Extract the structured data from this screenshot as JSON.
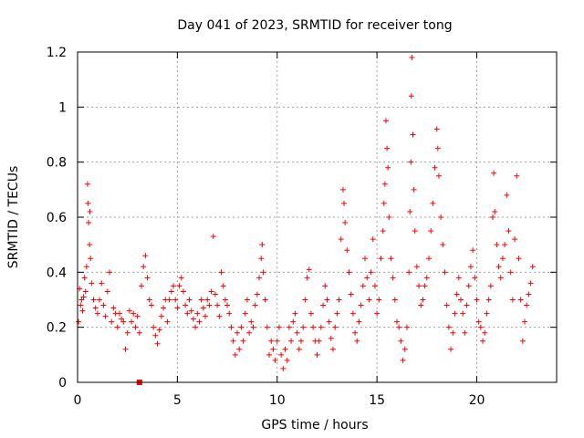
{
  "chart_data": {
    "type": "scatter",
    "title": "Day 041 of 2023, SRMTID for receiver tong",
    "xlabel": "GPS time / hours",
    "ylabel": "SRMTID / TECUs",
    "xlim": [
      0,
      24
    ],
    "ylim": [
      0,
      1.2
    ],
    "x_ticks": [
      0,
      5,
      10,
      15,
      20
    ],
    "x_tick_labels": [
      "0",
      "5",
      "10",
      "15",
      "20"
    ],
    "y_ticks": [
      0,
      0.2,
      0.4,
      0.6,
      0.8,
      1,
      1.2
    ],
    "y_tick_labels": [
      "0",
      "0.2",
      "0.4",
      "0.6",
      "0.8",
      "1",
      "1.2"
    ],
    "grid": true,
    "marker": "+",
    "colors": {
      "series": "#ff0000",
      "grid": "#a0a0a0",
      "axis": "#000000"
    },
    "series": [
      {
        "name": "SRMTID",
        "points": [
          [
            0.05,
            0.22
          ],
          [
            0.1,
            0.34
          ],
          [
            0.15,
            0.28
          ],
          [
            0.2,
            0.3
          ],
          [
            0.25,
            0.26
          ],
          [
            0.3,
            0.31
          ],
          [
            0.35,
            0.38
          ],
          [
            0.4,
            0.33
          ],
          [
            0.45,
            0.42
          ],
          [
            0.5,
            0.72
          ],
          [
            0.52,
            0.65
          ],
          [
            0.55,
            0.58
          ],
          [
            0.6,
            0.5
          ],
          [
            0.62,
            0.62
          ],
          [
            0.65,
            0.45
          ],
          [
            0.7,
            0.36
          ],
          [
            0.8,
            0.3
          ],
          [
            0.9,
            0.27
          ],
          [
            1.0,
            0.25
          ],
          [
            1.1,
            0.3
          ],
          [
            1.2,
            0.36
          ],
          [
            1.3,
            0.28
          ],
          [
            1.4,
            0.24
          ],
          [
            1.5,
            0.33
          ],
          [
            1.6,
            0.4
          ],
          [
            1.7,
            0.22
          ],
          [
            1.8,
            0.27
          ],
          [
            1.9,
            0.25
          ],
          [
            2.0,
            0.2
          ],
          [
            2.1,
            0.25
          ],
          [
            2.2,
            0.23
          ],
          [
            2.3,
            0.22
          ],
          [
            2.4,
            0.12
          ],
          [
            2.5,
            0.18
          ],
          [
            2.6,
            0.26
          ],
          [
            2.7,
            0.22
          ],
          [
            2.8,
            0.25
          ],
          [
            2.9,
            0.2
          ],
          [
            3.0,
            0.24
          ],
          [
            3.1,
            0.18
          ],
          [
            3.2,
            0.35
          ],
          [
            3.3,
            0.42
          ],
          [
            3.4,
            0.46
          ],
          [
            3.5,
            0.38
          ],
          [
            3.6,
            0.3
          ],
          [
            3.7,
            0.28
          ],
          [
            3.8,
            0.2
          ],
          [
            3.9,
            0.17
          ],
          [
            4.0,
            0.14
          ],
          [
            4.1,
            0.19
          ],
          [
            4.2,
            0.24
          ],
          [
            4.3,
            0.27
          ],
          [
            4.4,
            0.3
          ],
          [
            4.5,
            0.22
          ],
          [
            4.6,
            0.3
          ],
          [
            4.7,
            0.33
          ],
          [
            4.8,
            0.35
          ],
          [
            4.9,
            0.3
          ],
          [
            5.0,
            0.27
          ],
          [
            5.1,
            0.35
          ],
          [
            5.2,
            0.38
          ],
          [
            5.3,
            0.33
          ],
          [
            5.4,
            0.28
          ],
          [
            5.5,
            0.25
          ],
          [
            5.6,
            0.3
          ],
          [
            5.7,
            0.26
          ],
          [
            5.8,
            0.23
          ],
          [
            5.9,
            0.2
          ],
          [
            6.0,
            0.25
          ],
          [
            6.1,
            0.22
          ],
          [
            6.2,
            0.3
          ],
          [
            6.3,
            0.27
          ],
          [
            6.4,
            0.24
          ],
          [
            6.5,
            0.3
          ],
          [
            6.6,
            0.28
          ],
          [
            6.7,
            0.33
          ],
          [
            6.8,
            0.53
          ],
          [
            6.9,
            0.32
          ],
          [
            7.0,
            0.28
          ],
          [
            7.1,
            0.24
          ],
          [
            7.2,
            0.4
          ],
          [
            7.3,
            0.35
          ],
          [
            7.4,
            0.3
          ],
          [
            7.5,
            0.28
          ],
          [
            7.6,
            0.25
          ],
          [
            7.7,
            0.2
          ],
          [
            7.8,
            0.15
          ],
          [
            7.9,
            0.1
          ],
          [
            8.0,
            0.18
          ],
          [
            8.1,
            0.12
          ],
          [
            8.2,
            0.2
          ],
          [
            8.3,
            0.15
          ],
          [
            8.4,
            0.25
          ],
          [
            8.5,
            0.3
          ],
          [
            8.6,
            0.18
          ],
          [
            8.7,
            0.22
          ],
          [
            8.8,
            0.2
          ],
          [
            8.9,
            0.28
          ],
          [
            9.0,
            0.32
          ],
          [
            9.1,
            0.38
          ],
          [
            9.2,
            0.45
          ],
          [
            9.25,
            0.5
          ],
          [
            9.3,
            0.4
          ],
          [
            9.4,
            0.3
          ],
          [
            9.5,
            0.2
          ],
          [
            9.6,
            0.1
          ],
          [
            9.7,
            0.15
          ],
          [
            9.8,
            0.12
          ],
          [
            9.9,
            0.08
          ],
          [
            10.0,
            0.15
          ],
          [
            10.1,
            0.2
          ],
          [
            10.2,
            0.1
          ],
          [
            10.3,
            0.05
          ],
          [
            10.4,
            0.12
          ],
          [
            10.5,
            0.08
          ],
          [
            10.6,
            0.2
          ],
          [
            10.7,
            0.15
          ],
          [
            10.8,
            0.22
          ],
          [
            10.9,
            0.25
          ],
          [
            11.0,
            0.18
          ],
          [
            11.1,
            0.12
          ],
          [
            11.2,
            0.15
          ],
          [
            11.3,
            0.2
          ],
          [
            11.4,
            0.3
          ],
          [
            11.5,
            0.38
          ],
          [
            11.6,
            0.41
          ],
          [
            11.7,
            0.25
          ],
          [
            11.8,
            0.2
          ],
          [
            11.9,
            0.15
          ],
          [
            12.0,
            0.1
          ],
          [
            12.1,
            0.15
          ],
          [
            12.2,
            0.2
          ],
          [
            12.3,
            0.28
          ],
          [
            12.4,
            0.35
          ],
          [
            12.5,
            0.3
          ],
          [
            12.6,
            0.22
          ],
          [
            12.7,
            0.16
          ],
          [
            12.8,
            0.12
          ],
          [
            12.9,
            0.2
          ],
          [
            13.0,
            0.25
          ],
          [
            13.1,
            0.3
          ],
          [
            13.2,
            0.52
          ],
          [
            13.3,
            0.7
          ],
          [
            13.35,
            0.65
          ],
          [
            13.4,
            0.58
          ],
          [
            13.5,
            0.48
          ],
          [
            13.6,
            0.4
          ],
          [
            13.7,
            0.32
          ],
          [
            13.8,
            0.25
          ],
          [
            13.9,
            0.18
          ],
          [
            14.0,
            0.15
          ],
          [
            14.1,
            0.22
          ],
          [
            14.2,
            0.28
          ],
          [
            14.3,
            0.35
          ],
          [
            14.4,
            0.45
          ],
          [
            14.5,
            0.38
          ],
          [
            14.6,
            0.3
          ],
          [
            14.7,
            0.4
          ],
          [
            14.8,
            0.52
          ],
          [
            14.9,
            0.35
          ],
          [
            15.0,
            0.25
          ],
          [
            15.1,
            0.3
          ],
          [
            15.2,
            0.45
          ],
          [
            15.3,
            0.55
          ],
          [
            15.35,
            0.65
          ],
          [
            15.4,
            0.72
          ],
          [
            15.45,
            0.95
          ],
          [
            15.5,
            0.85
          ],
          [
            15.55,
            0.78
          ],
          [
            15.6,
            0.6
          ],
          [
            15.7,
            0.45
          ],
          [
            15.8,
            0.38
          ],
          [
            15.9,
            0.3
          ],
          [
            16.0,
            0.22
          ],
          [
            16.1,
            0.2
          ],
          [
            16.2,
            0.15
          ],
          [
            16.3,
            0.08
          ],
          [
            16.4,
            0.12
          ],
          [
            16.5,
            0.2
          ],
          [
            16.6,
            0.4
          ],
          [
            16.65,
            0.62
          ],
          [
            16.7,
            0.8
          ],
          [
            16.72,
            1.04
          ],
          [
            16.75,
            1.18
          ],
          [
            16.8,
            0.9
          ],
          [
            16.85,
            0.7
          ],
          [
            16.9,
            0.55
          ],
          [
            17.0,
            0.42
          ],
          [
            17.1,
            0.35
          ],
          [
            17.2,
            0.28
          ],
          [
            17.3,
            0.3
          ],
          [
            17.4,
            0.35
          ],
          [
            17.5,
            0.38
          ],
          [
            17.6,
            0.45
          ],
          [
            17.7,
            0.55
          ],
          [
            17.8,
            0.65
          ],
          [
            17.9,
            0.78
          ],
          [
            18.0,
            0.92
          ],
          [
            18.05,
            0.85
          ],
          [
            18.1,
            0.75
          ],
          [
            18.2,
            0.6
          ],
          [
            18.3,
            0.5
          ],
          [
            18.4,
            0.4
          ],
          [
            18.5,
            0.28
          ],
          [
            18.6,
            0.2
          ],
          [
            18.7,
            0.12
          ],
          [
            18.8,
            0.18
          ],
          [
            18.9,
            0.25
          ],
          [
            19.0,
            0.32
          ],
          [
            19.1,
            0.38
          ],
          [
            19.2,
            0.3
          ],
          [
            19.3,
            0.25
          ],
          [
            19.4,
            0.18
          ],
          [
            19.5,
            0.28
          ],
          [
            19.6,
            0.35
          ],
          [
            19.7,
            0.42
          ],
          [
            19.8,
            0.48
          ],
          [
            19.9,
            0.38
          ],
          [
            20.0,
            0.3
          ],
          [
            20.1,
            0.22
          ],
          [
            20.2,
            0.2
          ],
          [
            20.3,
            0.15
          ],
          [
            20.4,
            0.18
          ],
          [
            20.5,
            0.25
          ],
          [
            20.6,
            0.3
          ],
          [
            20.7,
            0.35
          ],
          [
            20.8,
            0.6
          ],
          [
            20.85,
            0.76
          ],
          [
            20.9,
            0.62
          ],
          [
            21.0,
            0.5
          ],
          [
            21.1,
            0.42
          ],
          [
            21.2,
            0.38
          ],
          [
            21.3,
            0.45
          ],
          [
            21.4,
            0.5
          ],
          [
            21.5,
            0.68
          ],
          [
            21.6,
            0.55
          ],
          [
            21.7,
            0.4
          ],
          [
            21.8,
            0.3
          ],
          [
            21.9,
            0.52
          ],
          [
            22.0,
            0.75
          ],
          [
            22.1,
            0.45
          ],
          [
            22.2,
            0.3
          ],
          [
            22.3,
            0.15
          ],
          [
            22.4,
            0.22
          ],
          [
            22.5,
            0.28
          ],
          [
            22.6,
            0.32
          ],
          [
            22.7,
            0.36
          ],
          [
            22.8,
            0.42
          ]
        ]
      }
    ],
    "outlier_markers": [
      [
        3.1,
        0.0
      ]
    ]
  }
}
